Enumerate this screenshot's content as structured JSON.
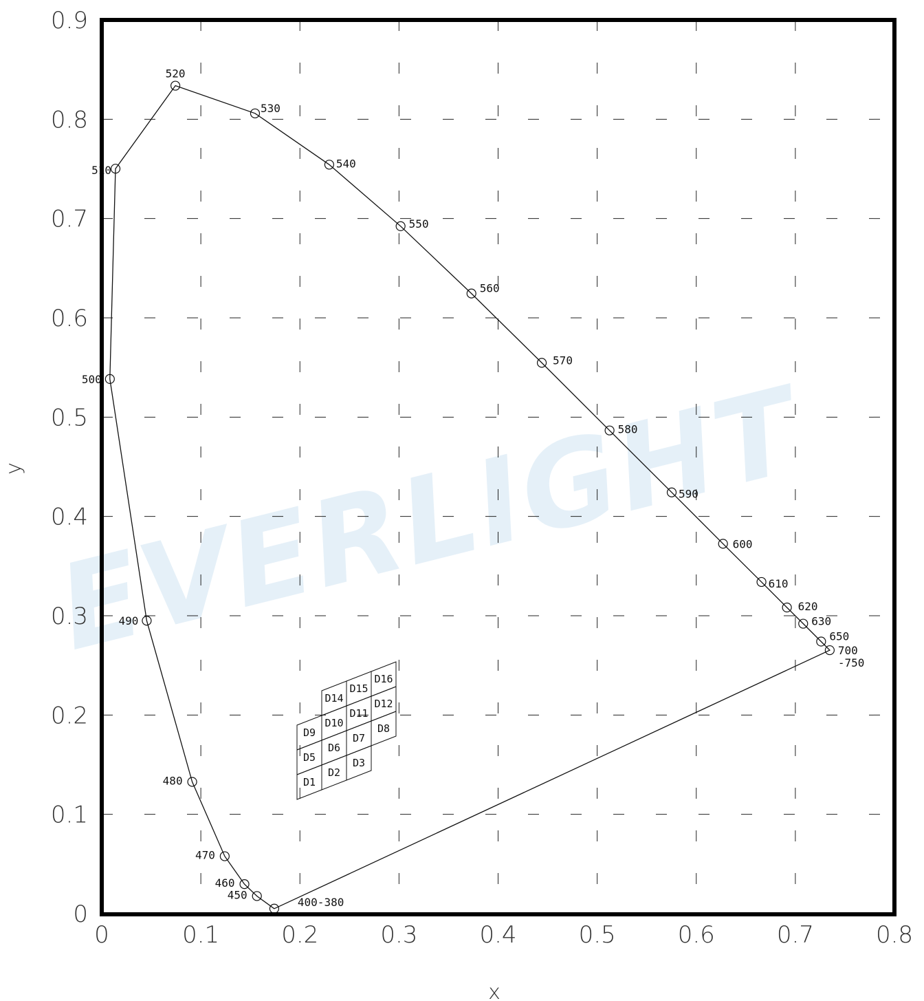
{
  "chart_data": {
    "type": "scatter",
    "title": "",
    "xlabel": "x",
    "ylabel": "y",
    "xlim": [
      0,
      0.8
    ],
    "ylim": [
      0,
      0.9
    ],
    "x_ticks": [
      "0",
      "0.1",
      "0.2",
      "0.3",
      "0.4",
      "0.5",
      "0.6",
      "0.7",
      "0.8"
    ],
    "y_ticks": [
      "0",
      "0.1",
      "0.2",
      "0.3",
      "0.4",
      "0.5",
      "0.6",
      "0.7",
      "0.8",
      "0.9"
    ],
    "grid": true,
    "watermark": "EVERLIGHT",
    "spectral_locus": [
      {
        "label": "400-380",
        "x": 0.1741,
        "y": 0.005
      },
      {
        "label": "450",
        "x": 0.1566,
        "y": 0.0177
      },
      {
        "label": "460",
        "x": 0.144,
        "y": 0.0297
      },
      {
        "label": "470",
        "x": 0.1241,
        "y": 0.0578
      },
      {
        "label": "480",
        "x": 0.0913,
        "y": 0.1327
      },
      {
        "label": "490",
        "x": 0.0454,
        "y": 0.295
      },
      {
        "label": "500",
        "x": 0.0082,
        "y": 0.5384
      },
      {
        "label": "510",
        "x": 0.0139,
        "y": 0.7502
      },
      {
        "label": "520",
        "x": 0.0743,
        "y": 0.8338
      },
      {
        "label": "530",
        "x": 0.1547,
        "y": 0.8059
      },
      {
        "label": "540",
        "x": 0.2296,
        "y": 0.7543
      },
      {
        "label": "550",
        "x": 0.3016,
        "y": 0.6923
      },
      {
        "label": "560",
        "x": 0.3731,
        "y": 0.6245
      },
      {
        "label": "570",
        "x": 0.4441,
        "y": 0.5547
      },
      {
        "label": "580",
        "x": 0.5125,
        "y": 0.4866
      },
      {
        "label": "590",
        "x": 0.5752,
        "y": 0.4242
      },
      {
        "label": "600",
        "x": 0.627,
        "y": 0.3725
      },
      {
        "label": "610",
        "x": 0.6658,
        "y": 0.334
      },
      {
        "label": "620",
        "x": 0.6915,
        "y": 0.3083
      },
      {
        "label": "630",
        "x": 0.7079,
        "y": 0.292
      },
      {
        "label": "650",
        "x": 0.726,
        "y": 0.274
      },
      {
        "label": "700\n-750",
        "x": 0.7347,
        "y": 0.2653
      }
    ],
    "bins": [
      {
        "label": "D1"
      },
      {
        "label": "D2"
      },
      {
        "label": "D3"
      },
      {
        "label": "D5"
      },
      {
        "label": "D6"
      },
      {
        "label": "D7"
      },
      {
        "label": "D8"
      },
      {
        "label": "D9"
      },
      {
        "label": "D10"
      },
      {
        "label": "D11"
      },
      {
        "label": "D12"
      },
      {
        "label": "D14"
      },
      {
        "label": "D15"
      },
      {
        "label": "D16"
      }
    ]
  }
}
